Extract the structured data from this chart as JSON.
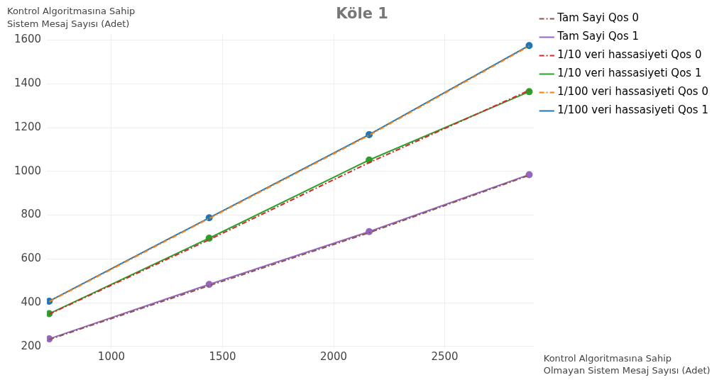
{
  "chart_data": {
    "type": "line",
    "title": "Köle 1",
    "xlabel": "Kontrol Algoritmasına Sahip\nOlmayan Sistem Mesaj Sayısı (Adet)",
    "ylabel": "Kontrol Algoritmasına Sahip\nSistem Mesaj Sayısı (Adet)",
    "x": [
      720,
      1440,
      2160,
      2880
    ],
    "xlim": [
      710,
      2900
    ],
    "xticks": [
      1000,
      1500,
      2000,
      2500
    ],
    "ylim": [
      190,
      1630
    ],
    "yticks": [
      200,
      400,
      600,
      800,
      1000,
      1200,
      1400,
      1600
    ],
    "grid": true,
    "legend": "right",
    "series": [
      {
        "name": "Tam Sayi Qos 0",
        "color": "#8c564b",
        "values": [
          232,
          478,
          720,
          982
        ],
        "line_style": "dashed",
        "marker": "none"
      },
      {
        "name": "Tam Sayi Qos 1",
        "color": "#9467bd",
        "values": [
          235,
          484,
          725,
          985
        ],
        "line_style": "solid",
        "marker": "circle"
      },
      {
        "name": "1/10 veri hassasiyeti Qos 0",
        "color": "#d62728",
        "values": [
          348,
          688,
          1040,
          1370
        ],
        "line_style": "dashed",
        "marker": "none"
      },
      {
        "name": "1/10 veri hassasiyeti Qos 1",
        "color": "#2ca02c",
        "values": [
          350,
          695,
          1052,
          1364
        ],
        "line_style": "solid",
        "marker": "circle"
      },
      {
        "name": "1/100 veri hassasiyeti Qos 0",
        "color": "#ff7f0e",
        "values": [
          405,
          785,
          1165,
          1572
        ],
        "line_style": "dashed",
        "marker": "none"
      },
      {
        "name": "1/100 veri hassasiyeti Qos 1",
        "color": "#1f77b4",
        "values": [
          407,
          788,
          1168,
          1575
        ],
        "line_style": "solid",
        "marker": "circle"
      }
    ]
  }
}
